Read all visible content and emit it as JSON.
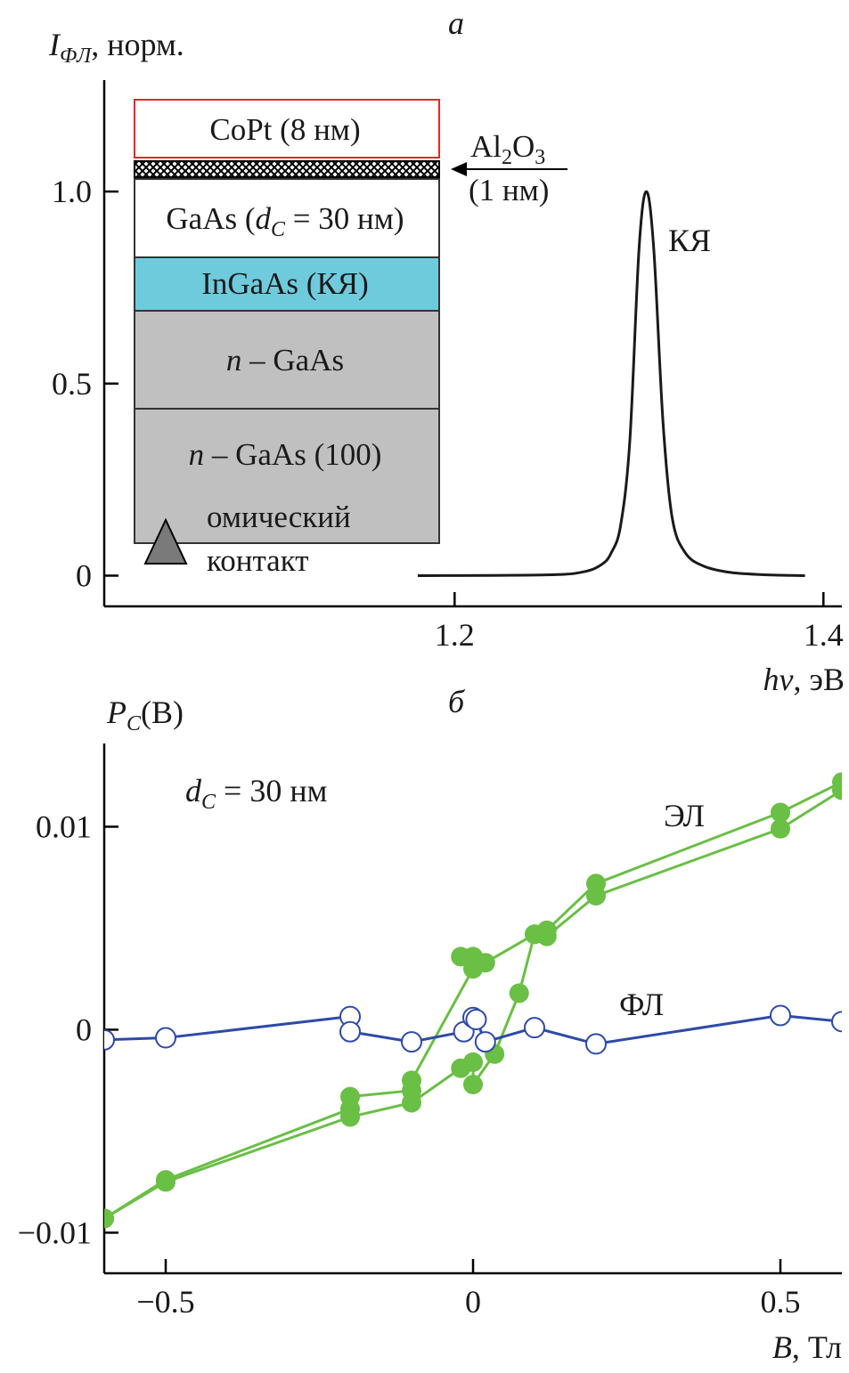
{
  "chart_data": [
    {
      "panel": "а",
      "type": "line",
      "ylabel": {
        "main": "I",
        "sub": "ФЛ",
        "rest": ", норм."
      },
      "xlabel": {
        "main": "hν",
        "rest": ", эВ"
      },
      "xlim": [
        1.01,
        1.41
      ],
      "ylim": [
        -0.08,
        1.29
      ],
      "xticks": [
        "1.2",
        "1.4"
      ],
      "xtick_values": [
        1.2,
        1.4
      ],
      "yticks": [
        "0",
        "0.5",
        "1.0"
      ],
      "ytick_values": [
        0,
        0.5,
        1.0
      ],
      "annotation": "КЯ",
      "series": [
        {
          "name": "spectrum",
          "color": "#1a1a1a",
          "x": [
            1.18,
            1.25,
            1.27,
            1.28,
            1.285,
            1.29,
            1.295,
            1.3,
            1.304,
            1.308,
            1.313,
            1.318,
            1.325,
            1.335,
            1.35,
            1.37,
            1.39
          ],
          "y": [
            0,
            0.002,
            0.01,
            0.03,
            0.06,
            0.13,
            0.35,
            0.85,
            1.0,
            0.85,
            0.4,
            0.15,
            0.06,
            0.025,
            0.008,
            0.002,
            0
          ]
        }
      ],
      "inset": {
        "layers": [
          {
            "label": "CoPt (8 нм)",
            "color": "#ffffff",
            "border": "#e8252a"
          },
          {
            "label": "",
            "color": "#000000",
            "pattern": "crosshatch"
          },
          {
            "label_main": "GaAs (",
            "label_it": "d",
            "label_sub": "C",
            "label_rest": " = 30 нм)",
            "color": "#ffffff"
          },
          {
            "label": "InGaAs (КЯ)",
            "color": "#6ecbdc"
          },
          {
            "label_it": "n",
            "label_rest": " – GaAs",
            "color": "#c0c0c0"
          },
          {
            "label_it": "n",
            "label_rest": " – GaAs (100)",
            "color": "#c0c0c0"
          }
        ],
        "al2o3": {
          "a": "Al",
          "s1": "2",
          "b": "O",
          "s2": "3",
          "thickness": "(1 нм)"
        },
        "contact": [
          "омический",
          "контакт"
        ],
        "contact_color": "#7a7a7a"
      }
    },
    {
      "panel": "б",
      "type": "line",
      "ylabel": {
        "main": "P",
        "sub": "C",
        "rest": "(B)"
      },
      "xlabel": {
        "main": "B",
        "rest": ", Тл"
      },
      "xlim": [
        -0.6,
        0.6
      ],
      "ylim": [
        -0.012,
        0.0141
      ],
      "xticks": [
        "−0.5",
        "0",
        "0.5"
      ],
      "xtick_values": [
        -0.5,
        0,
        0.5
      ],
      "yticks": [
        "−0.01",
        "0",
        "0.01"
      ],
      "ytick_values": [
        -0.01,
        0,
        0.01
      ],
      "annotation": {
        "it": "d",
        "sub": "C",
        "rest": " = 30 нм"
      },
      "series": [
        {
          "name": "ЭЛ",
          "color": "#6abf45",
          "marker": "filled-circle",
          "branches": [
            {
              "x": [
                -0.6,
                -0.5,
                -0.2,
                -0.1,
                -0.02,
                0,
                0,
                0.035,
                0.075,
                0.1,
                0.12,
                0.2,
                0.5,
                0.6
              ],
              "y": [
                -0.0093,
                -0.0075,
                -0.0043,
                -0.0036,
                -0.0019,
                -0.0016,
                -0.0027,
                -0.0012,
                0.0018,
                0.0047,
                0.0046,
                0.0066,
                0.0099,
                0.0118
              ]
            },
            {
              "x": [
                0.6,
                0.5,
                0.2,
                0.12,
                0.1,
                0.02,
                0,
                -0.02,
                0,
                -0.1,
                -0.1,
                -0.2,
                -0.2,
                -0.5,
                -0.6
              ],
              "y": [
                0.0122,
                0.0107,
                0.0072,
                0.0049,
                0.0047,
                0.0033,
                0.0036,
                0.0036,
                0.003,
                -0.0025,
                -0.003,
                -0.0033,
                -0.0039,
                -0.0074,
                -0.0093
              ]
            }
          ]
        },
        {
          "name": "ФЛ",
          "color": "#2e4aa8",
          "marker": "open-circle",
          "x": [
            -0.6,
            -0.5,
            -0.2,
            -0.2,
            -0.1,
            -0.015,
            0,
            0.005,
            0.02,
            0.1,
            0.2,
            0.5,
            0.6
          ],
          "y": [
            -0.0005,
            -0.0004,
            0.00065,
            -0.0001,
            -0.0006,
            -0.0001,
            0.0006,
            0.0005,
            -0.0006,
            0.0001,
            -0.0007,
            0.0007,
            0.0004
          ]
        }
      ]
    }
  ]
}
